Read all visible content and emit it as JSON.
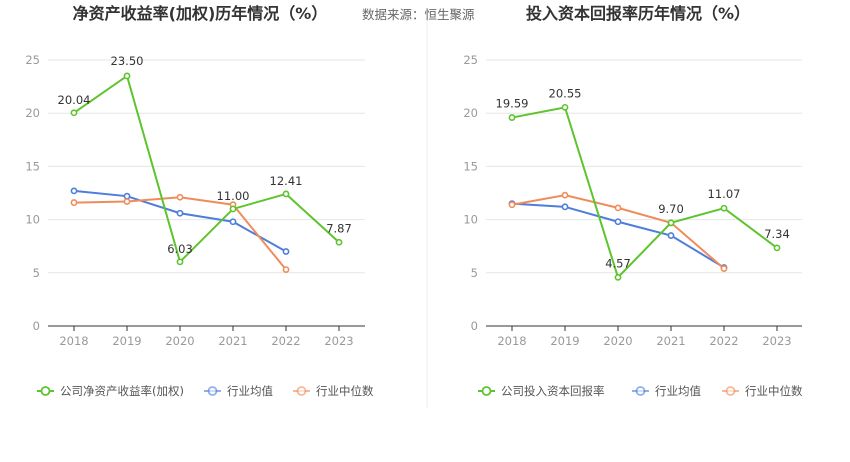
{
  "source_label": "数据来源：恒生聚源",
  "colors": {
    "company": "#5ec42e",
    "avg": "#4e7ddc",
    "median": "#f08c5a",
    "grid": "#e6e6e6",
    "axis": "#333333",
    "tick_text": "#999999",
    "title_text": "#333333",
    "label_text": "#333333",
    "legend_text": "#555555"
  },
  "chart_data": [
    {
      "type": "line",
      "title": "净资产收益率(加权)历年情况（%）",
      "categories": [
        "2018",
        "2019",
        "2020",
        "2021",
        "2022",
        "2023"
      ],
      "ylim": [
        0,
        25
      ],
      "yticks": [
        0,
        5,
        10,
        15,
        20,
        25
      ],
      "series": [
        {
          "name": "公司净资产收益率(加权)",
          "role": "company",
          "values": [
            20.04,
            23.5,
            6.03,
            11.0,
            12.41,
            7.87
          ],
          "labels": [
            "20.04",
            "23.50",
            "6.03",
            "11.00",
            "12.41",
            "7.87"
          ]
        },
        {
          "name": "行业均值",
          "role": "avg",
          "values": [
            12.7,
            12.2,
            10.6,
            9.8,
            7.0,
            null
          ]
        },
        {
          "name": "行业中位数",
          "role": "median",
          "values": [
            11.6,
            11.7,
            12.1,
            11.4,
            5.3,
            null
          ]
        }
      ]
    },
    {
      "type": "line",
      "title": "投入资本回报率历年情况（%）",
      "categories": [
        "2018",
        "2019",
        "2020",
        "2021",
        "2022",
        "2023"
      ],
      "ylim": [
        0,
        25
      ],
      "yticks": [
        0,
        5,
        10,
        15,
        20,
        25
      ],
      "series": [
        {
          "name": "公司投入资本回报率",
          "role": "company",
          "values": [
            19.59,
            20.55,
            4.57,
            9.7,
            11.07,
            7.34
          ],
          "labels": [
            "19.59",
            "20.55",
            "4.57",
            "9.70",
            "11.07",
            "7.34"
          ]
        },
        {
          "name": "行业均值",
          "role": "avg",
          "values": [
            11.5,
            11.2,
            9.8,
            8.5,
            5.5,
            null
          ]
        },
        {
          "name": "行业中位数",
          "role": "median",
          "values": [
            11.4,
            12.3,
            11.1,
            9.7,
            5.4,
            null
          ]
        }
      ]
    }
  ]
}
